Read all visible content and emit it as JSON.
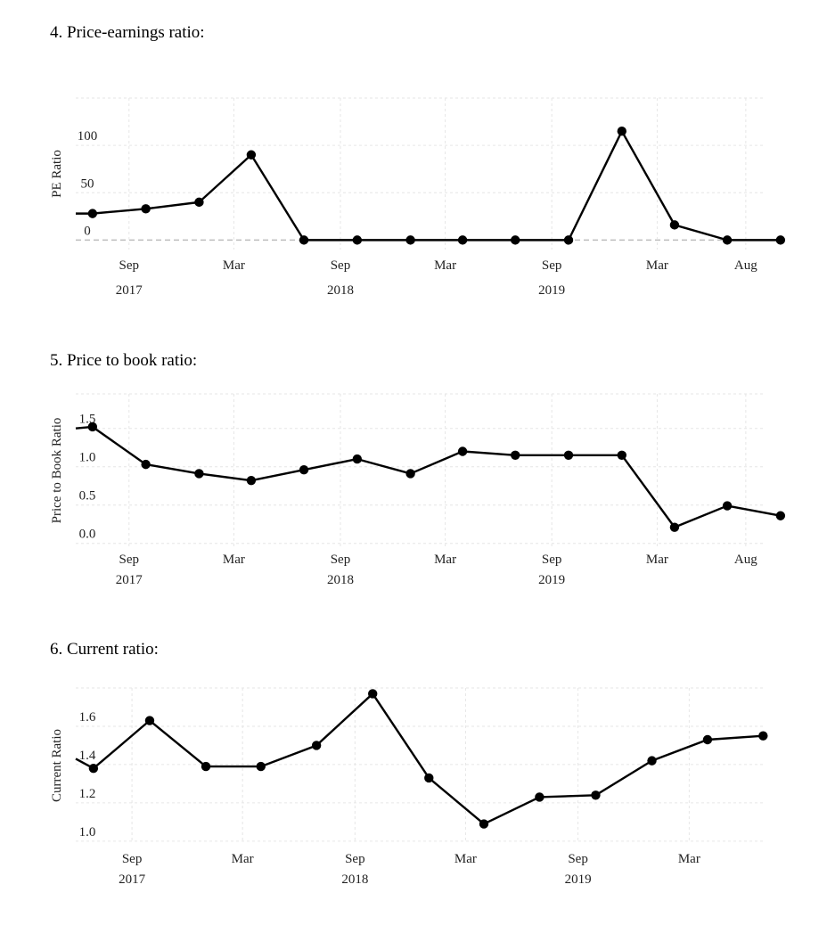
{
  "sections": [
    {
      "heading": "4. Price-earnings ratio:"
    },
    {
      "heading": "5. Price to book ratio:"
    },
    {
      "heading": "6. Current ratio:"
    }
  ],
  "colors": {
    "line": "#000000",
    "grid": "#e6e6e6",
    "zero_line": "#bdbdbd"
  },
  "chart_data": [
    {
      "type": "line",
      "title": "",
      "xlabel": "",
      "ylabel": "PE Ratio",
      "ylim": [
        -10,
        150
      ],
      "xlim": [
        "2017-06-01",
        "2020-09-01"
      ],
      "yticks": [
        0,
        50,
        100
      ],
      "ytick_labels": [
        "0",
        "50",
        "100"
      ],
      "xticks": [
        {
          "date": "2017-09-01",
          "label": "Sep",
          "year": "2017"
        },
        {
          "date": "2018-03-01",
          "label": "Mar",
          "year": ""
        },
        {
          "date": "2018-09-01",
          "label": "Sep",
          "year": "2018"
        },
        {
          "date": "2019-03-01",
          "label": "Mar",
          "year": ""
        },
        {
          "date": "2019-09-01",
          "label": "Sep",
          "year": "2019"
        },
        {
          "date": "2020-03-01",
          "label": "Mar",
          "year": ""
        },
        {
          "date": "2020-08-01",
          "label": "Aug",
          "year": ""
        }
      ],
      "grid": true,
      "zero_dashed": true,
      "lead_in": {
        "x": "2017-06-01",
        "y": 28
      },
      "x": [
        "2017-06-30",
        "2017-09-30",
        "2017-12-31",
        "2018-03-31",
        "2018-06-30",
        "2018-09-30",
        "2018-12-31",
        "2019-03-31",
        "2019-06-30",
        "2019-09-30",
        "2019-12-31",
        "2020-03-31",
        "2020-06-30",
        "2020-09-30"
      ],
      "series": [
        {
          "values": [
            28,
            33,
            40,
            90,
            0,
            0,
            0,
            0,
            0,
            0,
            115,
            16,
            0,
            0
          ]
        }
      ]
    },
    {
      "type": "line",
      "title": "",
      "xlabel": "",
      "ylabel": "Price to Book Ratio",
      "ylim": [
        -0.05,
        1.95
      ],
      "xlim": [
        "2017-06-01",
        "2020-09-01"
      ],
      "yticks": [
        0.0,
        0.5,
        1.0,
        1.5
      ],
      "ytick_labels": [
        "0.0",
        "0.5",
        "1.0",
        "1.5"
      ],
      "xticks": [
        {
          "date": "2017-09-01",
          "label": "Sep",
          "year": "2017"
        },
        {
          "date": "2018-03-01",
          "label": "Mar",
          "year": ""
        },
        {
          "date": "2018-09-01",
          "label": "Sep",
          "year": "2018"
        },
        {
          "date": "2019-03-01",
          "label": "Mar",
          "year": ""
        },
        {
          "date": "2019-09-01",
          "label": "Sep",
          "year": "2019"
        },
        {
          "date": "2020-03-01",
          "label": "Mar",
          "year": ""
        },
        {
          "date": "2020-08-01",
          "label": "Aug",
          "year": ""
        }
      ],
      "grid": true,
      "zero_dashed": false,
      "lead_in": {
        "x": "2017-06-01",
        "y": 1.5
      },
      "x": [
        "2017-06-30",
        "2017-09-30",
        "2017-12-31",
        "2018-03-31",
        "2018-06-30",
        "2018-09-30",
        "2018-12-31",
        "2019-03-31",
        "2019-06-30",
        "2019-09-30",
        "2019-12-31",
        "2020-03-31",
        "2020-06-30",
        "2020-09-30"
      ],
      "series": [
        {
          "values": [
            1.52,
            1.03,
            0.91,
            0.82,
            0.96,
            1.1,
            0.91,
            1.2,
            1.15,
            1.15,
            1.15,
            0.21,
            0.49,
            0.36
          ]
        }
      ]
    },
    {
      "type": "line",
      "title": "",
      "xlabel": "",
      "ylabel": "Current Ratio",
      "ylim": [
        0.99,
        1.8
      ],
      "xlim": [
        "2017-06-01",
        "2020-07-01"
      ],
      "yticks": [
        1.0,
        1.2,
        1.4,
        1.6
      ],
      "ytick_labels": [
        "1.0",
        "1.2",
        "1.4",
        "1.6"
      ],
      "xticks": [
        {
          "date": "2017-09-01",
          "label": "Sep",
          "year": "2017"
        },
        {
          "date": "2018-03-01",
          "label": "Mar",
          "year": ""
        },
        {
          "date": "2018-09-01",
          "label": "Sep",
          "year": "2018"
        },
        {
          "date": "2019-03-01",
          "label": "Mar",
          "year": ""
        },
        {
          "date": "2019-09-01",
          "label": "Sep",
          "year": "2019"
        },
        {
          "date": "2020-03-01",
          "label": "Mar",
          "year": ""
        }
      ],
      "grid": true,
      "zero_dashed": false,
      "lead_in": {
        "x": "2017-06-01",
        "y": 1.43
      },
      "x": [
        "2017-06-30",
        "2017-09-30",
        "2017-12-31",
        "2018-03-31",
        "2018-06-30",
        "2018-09-30",
        "2018-12-31",
        "2019-03-31",
        "2019-06-30",
        "2019-09-30",
        "2019-12-31",
        "2020-03-31",
        "2020-06-30"
      ],
      "series": [
        {
          "values": [
            1.38,
            1.63,
            1.39,
            1.39,
            1.5,
            1.77,
            1.33,
            1.09,
            1.23,
            1.24,
            1.42,
            1.53,
            1.55
          ]
        }
      ]
    }
  ]
}
